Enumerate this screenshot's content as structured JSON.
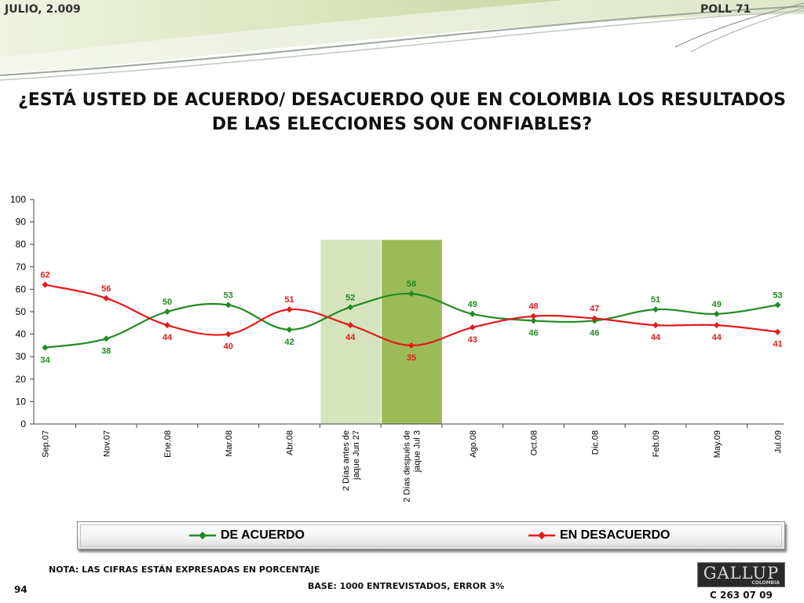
{
  "header": {
    "date": "JULIO, 2.009",
    "poll": "POLL 71"
  },
  "title": "¿ESTÁ USTED DE ACUERDO/ DESACUERDO QUE EN COLOMBIA LOS RESULTADOS DE LAS ELECCIONES SON CONFIABLES?",
  "chart_data": {
    "type": "line",
    "categories": [
      "Sep.07",
      "Nov.07",
      "Ene.08",
      "Mar.08",
      "Abr.08",
      "2 Días antes de jaque Jun 27",
      "2 Días después de jaque Jul 3",
      "Ago.08",
      "Oct.08",
      "Dic.08",
      "Feb.09",
      "May.09",
      "Jul.09"
    ],
    "category_lines": [
      [
        "Sep.07"
      ],
      [
        "Nov.07"
      ],
      [
        "Ene.08"
      ],
      [
        "Mar.08"
      ],
      [
        "Abr.08"
      ],
      [
        "2 Días antes de",
        "jaque Jun 27"
      ],
      [
        "2 Días después de",
        "jaque Jul 3"
      ],
      [
        "Ago.08"
      ],
      [
        "Oct.08"
      ],
      [
        "Dic.08"
      ],
      [
        "Feb.09"
      ],
      [
        "May.09"
      ],
      [
        "Jul.09"
      ]
    ],
    "series": [
      {
        "name": "DE ACUERDO",
        "color": "#238a23",
        "values": [
          34,
          38,
          50,
          53,
          42,
          52,
          58,
          49,
          46,
          46,
          51,
          49,
          53
        ]
      },
      {
        "name": "EN DESACUERDO",
        "color": "#e31b1b",
        "values": [
          62,
          56,
          44,
          40,
          51,
          44,
          35,
          43,
          48,
          47,
          44,
          44,
          41
        ]
      }
    ],
    "ylim": [
      0,
      100
    ],
    "yticks": [
      0,
      10,
      20,
      30,
      40,
      50,
      60,
      70,
      80,
      90,
      100
    ],
    "highlight_categories": [
      {
        "index": 5,
        "color": "#d6e4bd"
      },
      {
        "index": 6,
        "color": "#9bbb59"
      }
    ],
    "highlight_top_value": 82,
    "grid": false,
    "legend_position": "bottom"
  },
  "notes": {
    "note": "NOTA: LAS CIFRAS ESTÁN EXPRESADAS EN PORCENTAJE",
    "base": "BASE: 1000 ENTREVISTADOS, ERROR 3%",
    "page": "94",
    "code": "C 263 07 09"
  },
  "logo": {
    "name": "GALLUP",
    "sub": "COLOMBIA"
  }
}
